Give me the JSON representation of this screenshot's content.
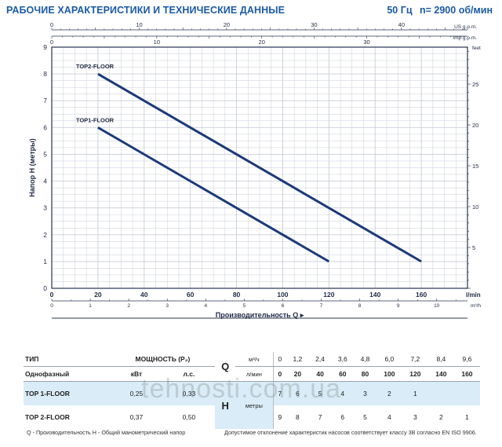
{
  "header": {
    "title": "РАБОЧИЕ ХАРАКТЕРИСТИКИ И ТЕХНИЧЕСКИЕ ДАННЫЕ",
    "freq": "50 Гц",
    "speed": "n= 2900 об/мин"
  },
  "chart_data": {
    "type": "line",
    "title": "",
    "xlabel": "Производительность Q",
    "ylabel": "Напор H (метры)",
    "xlim": [
      0,
      180
    ],
    "ylim": [
      0,
      9
    ],
    "x_unit": "l/min",
    "y2_unit": "feet",
    "x_ticks": [
      0,
      20,
      40,
      60,
      80,
      100,
      120,
      140,
      160
    ],
    "y_ticks": [
      0,
      1,
      2,
      3,
      4,
      5,
      6,
      7,
      8,
      9
    ],
    "us_gpm": {
      "label": "US g.p.m.",
      "ticks": [
        0,
        10,
        20,
        30,
        40
      ]
    },
    "imp_gpm": {
      "label": "Imp g.p.m.",
      "ticks": [
        0,
        10,
        20,
        30
      ]
    },
    "m3h": {
      "label": "m³/h",
      "ticks": [
        0,
        1,
        2,
        3,
        4,
        5,
        6,
        7,
        8,
        9,
        10
      ]
    },
    "feet_ticks": [
      0,
      5,
      10,
      15,
      20,
      25
    ],
    "grid": true,
    "series": [
      {
        "name": "TOP2-FLOOR",
        "x": [
          20,
          160
        ],
        "y": [
          8,
          1
        ],
        "color": "#1b3a7a"
      },
      {
        "name": "TOP1-FLOOR",
        "x": [
          20,
          120
        ],
        "y": [
          6,
          1
        ],
        "color": "#1b3a7a"
      }
    ]
  },
  "table": {
    "type_label": "ТИП",
    "power_label": "МОЩНОСТЬ (P₂)",
    "phase_label": "Однофазный",
    "kw_label": "кВт",
    "hp_label": "л.с.",
    "q_symbol": "Q",
    "m3h_label": "м³/ч",
    "lmin_label": "л/мин",
    "h_symbol": "H",
    "h_unit": "метры",
    "q_m3h": [
      "0",
      "1,2",
      "2,4",
      "3,6",
      "4,8",
      "6,0",
      "7,2",
      "8,4",
      "9,6"
    ],
    "q_lmin": [
      "0",
      "20",
      "40",
      "60",
      "80",
      "100",
      "120",
      "140",
      "160"
    ],
    "rows": [
      {
        "model": "TOP 1-FLOOR",
        "kw": "0,25",
        "hp": "0,33",
        "h": [
          "7",
          "6",
          "5",
          "4",
          "3",
          "2",
          "1",
          "",
          ""
        ]
      },
      {
        "model": "TOP 2-FLOOR",
        "kw": "0,37",
        "hp": "0,50",
        "h": [
          "9",
          "8",
          "7",
          "6",
          "5",
          "4",
          "3",
          "2",
          "1"
        ]
      }
    ]
  },
  "footer": {
    "left": "Q - Производительность   H - Общий манометрический напор",
    "right": "Допустимое отклонение характеристик насосов соответствует классу 3В согласно EN ISO 9906."
  },
  "watermark": "tehnosti.com.ua"
}
